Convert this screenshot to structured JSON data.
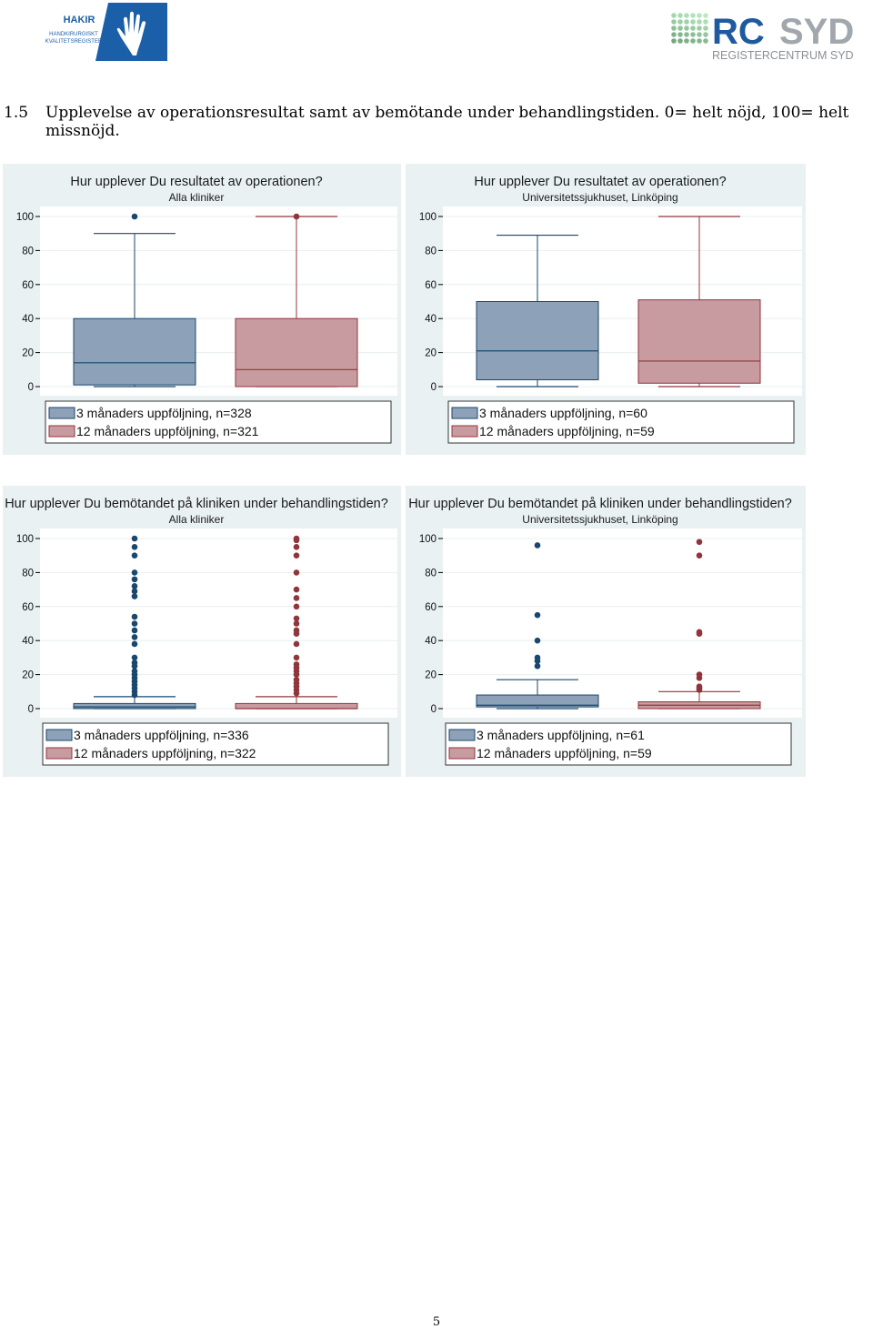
{
  "header": {
    "left_logo": {
      "icon": "hand-icon",
      "line1": "HAKIR",
      "line2": "HANDKIRURGISKT",
      "line3": "KVALITETSREGISTER"
    },
    "right_logo": {
      "icon": "dot-grid-icon",
      "wordmark_a": "RC",
      "wordmark_b": "SYD",
      "tagline": "REGISTERCENTRUM SYD"
    }
  },
  "section": {
    "number": "1.5",
    "title": "Upplevelse av operationsresultat samt av bemötande under behandlingstiden. 0= helt nöjd, 100= helt missnöjd."
  },
  "colors": {
    "panel_bg": "#eaf1f3",
    "series1": "#8da2b8",
    "series1_dark": "#1a476f",
    "series2": "#c89ba1",
    "series2_dark": "#90353b"
  },
  "chart_data": [
    {
      "type": "boxplot",
      "title": "Hur upplever Du resultatet av operationen?",
      "subtitle": "Alla kliniker",
      "ylim": [
        0,
        100
      ],
      "yticks": [
        "0",
        "20",
        "40",
        "60",
        "80",
        "100"
      ],
      "grid": true,
      "legend_position": "bottom",
      "series": [
        {
          "name": "3 månaders uppföljning, n=328",
          "min": 0,
          "q1": 1,
          "median": 14,
          "q3": 40,
          "max": 90,
          "outliers": [
            100
          ]
        },
        {
          "name": "12 månaders uppföljning, n=321",
          "min": 0,
          "q1": 0,
          "median": 10,
          "q3": 40,
          "max": 100,
          "outliers": [
            100
          ]
        }
      ]
    },
    {
      "type": "boxplot",
      "title": "Hur upplever Du resultatet av operationen?",
      "subtitle": "Universitetssjukhuset, Linköping",
      "ylim": [
        0,
        100
      ],
      "yticks": [
        "0",
        "20",
        "40",
        "60",
        "80",
        "100"
      ],
      "grid": true,
      "legend_position": "bottom",
      "series": [
        {
          "name": "3 månaders uppföljning, n=60",
          "min": 0,
          "q1": 4,
          "median": 21,
          "q3": 50,
          "max": 89,
          "outliers": []
        },
        {
          "name": "12 månaders uppföljning, n=59",
          "min": 0,
          "q1": 2,
          "median": 15,
          "q3": 51,
          "max": 100,
          "outliers": []
        }
      ]
    },
    {
      "type": "boxplot",
      "title": "Hur upplever Du bemötandet på kliniken under behandlingstiden?",
      "subtitle": "Alla kliniker",
      "ylim": [
        0,
        100
      ],
      "yticks": [
        "0",
        "20",
        "40",
        "60",
        "80",
        "100"
      ],
      "grid": true,
      "legend_position": "bottom",
      "series": [
        {
          "name": "3 månaders uppföljning, n=336",
          "min": 0,
          "q1": 0,
          "median": 1,
          "q3": 3,
          "max": 7,
          "outliers": [
            8,
            10,
            12,
            14,
            16,
            18,
            20,
            22,
            25,
            27,
            30,
            38,
            42,
            46,
            50,
            54,
            66,
            69,
            72,
            76,
            80,
            90,
            95,
            100
          ]
        },
        {
          "name": "12 månaders uppföljning, n=322",
          "min": 0,
          "q1": 0,
          "median": 0,
          "q3": 3,
          "max": 7,
          "outliers": [
            9,
            11,
            13,
            15,
            17,
            20,
            22,
            24,
            26,
            30,
            38,
            44,
            46,
            50,
            53,
            60,
            65,
            70,
            80,
            90,
            95,
            99,
            100
          ]
        }
      ]
    },
    {
      "type": "boxplot",
      "title": "Hur upplever Du bemötandet på kliniken under behandlingstiden?",
      "subtitle": "Universitetssjukhuset, Linköping",
      "ylim": [
        0,
        100
      ],
      "yticks": [
        "0",
        "20",
        "40",
        "60",
        "80",
        "100"
      ],
      "grid": true,
      "legend_position": "bottom",
      "series": [
        {
          "name": "3 månaders uppföljning, n=61",
          "min": 0,
          "q1": 1,
          "median": 2,
          "q3": 8,
          "max": 17,
          "outliers": [
            25,
            28,
            30,
            40,
            55,
            96
          ]
        },
        {
          "name": "12 månaders uppföljning, n=59",
          "min": 0,
          "q1": 0,
          "median": 2,
          "q3": 4,
          "max": 10,
          "outliers": [
            11,
            12,
            13,
            18,
            20,
            44,
            45,
            90,
            98
          ]
        }
      ]
    }
  ],
  "footer": {
    "page_number": "5"
  }
}
